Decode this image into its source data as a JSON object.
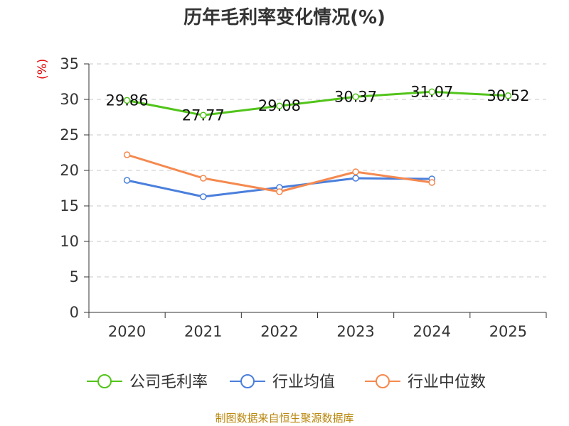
{
  "chart_data": {
    "type": "line",
    "title": "历年毛利率变化情况(%)",
    "ylabel": "(%)",
    "xlabel": "",
    "categories": [
      "2020",
      "2021",
      "2022",
      "2023",
      "2024",
      "2025"
    ],
    "ylim": [
      0,
      35
    ],
    "yticks": [
      0,
      5,
      10,
      15,
      20,
      25,
      30,
      35
    ],
    "grid": true,
    "legend_position": "bottom",
    "series": [
      {
        "name": "公司毛利率",
        "color": "#52c41a",
        "values": [
          29.86,
          27.77,
          29.08,
          30.37,
          31.07,
          30.52
        ],
        "labels": [
          "29.86",
          "27.77",
          "29.08",
          "30.37",
          "31.07",
          "30.52"
        ]
      },
      {
        "name": "行业均值",
        "color": "#4a7fdc",
        "values": [
          18.6,
          16.3,
          17.6,
          18.9,
          18.8,
          null
        ]
      },
      {
        "name": "行业中位数",
        "color": "#f5894f",
        "values": [
          22.2,
          18.9,
          17.0,
          19.8,
          18.3,
          null
        ]
      }
    ]
  },
  "footer": {
    "source": "制图数据来自恒生聚源数据库"
  }
}
